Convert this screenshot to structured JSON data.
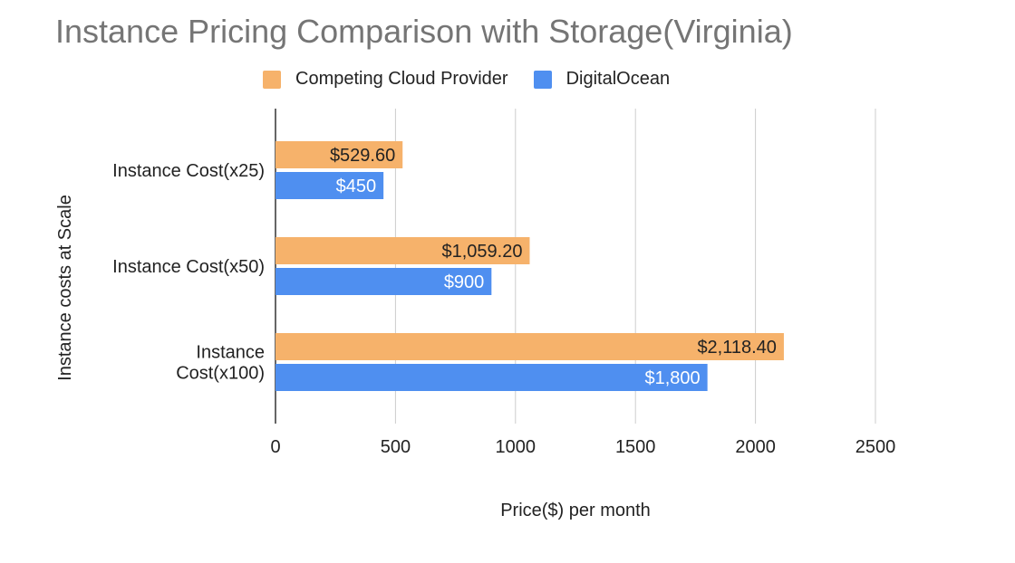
{
  "chart_data": {
    "type": "bar",
    "orientation": "horizontal",
    "title": "Instance Pricing Comparison with Storage(Virginia)",
    "xlabel": "Price($) per month",
    "ylabel": "Instance costs at Scale",
    "categories": [
      [
        "Instance Cost(x25)"
      ],
      [
        "Instance Cost(x50)"
      ],
      [
        "Instance",
        "Cost(x100)"
      ]
    ],
    "series": [
      {
        "name": "Competing Cloud Provider",
        "color": "#f6b26b",
        "values": [
          529.6,
          1059.2,
          2118.4
        ],
        "labels": [
          "$529.60",
          "$1,059.20",
          "$2,118.40"
        ],
        "label_color": "#222222"
      },
      {
        "name": "DigitalOcean",
        "color": "#4f8ff0",
        "values": [
          450,
          900,
          1800
        ],
        "labels": [
          "$450",
          "$900",
          "$1,800"
        ],
        "label_color": "#ffffff"
      }
    ],
    "xlim": [
      0,
      2500
    ],
    "xticks": [
      0,
      500,
      1000,
      1500,
      2000,
      2500
    ],
    "grid": true,
    "legend_position": "top"
  }
}
